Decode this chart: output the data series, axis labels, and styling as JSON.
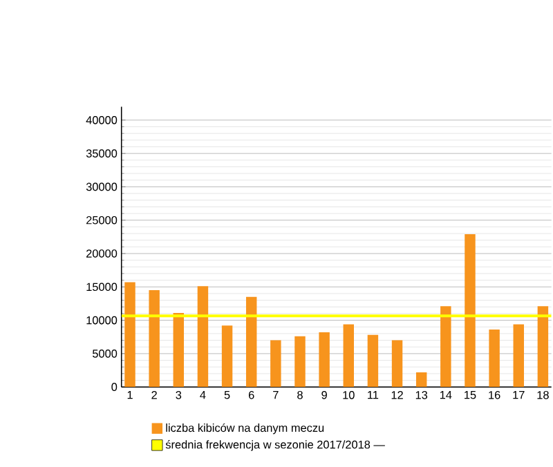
{
  "chart_data": {
    "type": "bar",
    "categories": [
      "1",
      "2",
      "3",
      "4",
      "5",
      "6",
      "7",
      "8",
      "9",
      "10",
      "11",
      "12",
      "13",
      "14",
      "15",
      "16",
      "17",
      "18"
    ],
    "series": [
      {
        "name": "liczba kibiców na danym meczu",
        "color": "#f7941d",
        "values": [
          15700,
          14500,
          11100,
          15100,
          9200,
          13500,
          7000,
          7600,
          8200,
          9400,
          7800,
          7000,
          2200,
          12100,
          22900,
          8600,
          9400,
          12100
        ]
      }
    ],
    "ylim": [
      0,
      42000
    ],
    "yticks": [
      0,
      5000,
      10000,
      15000,
      20000,
      25000,
      30000,
      35000,
      40000
    ],
    "ref_lines": [
      {
        "axis": "y",
        "value": 10650,
        "label": "średnia frekwencja w sezonie 2017/2018 —",
        "color": "#ffff00"
      }
    ],
    "grid": "y",
    "legend": "bottom"
  }
}
